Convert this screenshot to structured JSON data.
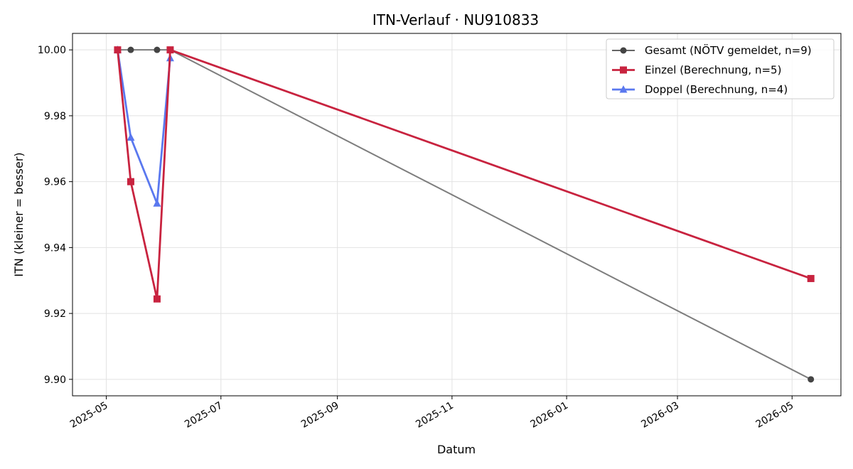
{
  "chart_data": {
    "type": "line",
    "title": "ITN-Verlauf · NU910833",
    "xlabel": "Datum",
    "ylabel": "ITN  (kleiner = besser)",
    "xlim": [
      "2025-04-13",
      "2026-05-27"
    ],
    "ylim": [
      9.895,
      10.005
    ],
    "x_ticks": [
      "2025-05",
      "2025-07",
      "2025-09",
      "2025-11",
      "2026-01",
      "2026-03",
      "2026-05"
    ],
    "y_ticks": [
      "9.90",
      "9.92",
      "9.94",
      "9.96",
      "9.98",
      "10.00"
    ],
    "grid": true,
    "legend_position": "top-right",
    "series": [
      {
        "name": "Gesamt (NÖTV gemeldet, n=9)",
        "color": "#666666",
        "marker": "circle",
        "points": [
          {
            "x": "2025-05-07",
            "y": 10.0
          },
          {
            "x": "2025-05-14",
            "y": 10.0
          },
          {
            "x": "2025-05-28",
            "y": 10.0
          },
          {
            "x": "2025-06-04",
            "y": 10.0
          },
          {
            "x": "2026-05-11",
            "y": 9.9
          }
        ]
      },
      {
        "name": "Einzel (Berechnung, n=5)",
        "color": "#c8233f",
        "marker": "square",
        "points": [
          {
            "x": "2025-05-07",
            "y": 10.0
          },
          {
            "x": "2025-05-14",
            "y": 9.96
          },
          {
            "x": "2025-05-28",
            "y": 9.9244
          },
          {
            "x": "2025-06-04",
            "y": 10.0
          },
          {
            "x": "2026-05-11",
            "y": 9.9306
          }
        ]
      },
      {
        "name": "Doppel (Berechnung, n=4)",
        "color": "#5a78ef",
        "marker": "triangle",
        "points": [
          {
            "x": "2025-05-07",
            "y": 10.0
          },
          {
            "x": "2025-05-14",
            "y": 9.9734
          },
          {
            "x": "2025-05-28",
            "y": 9.9534
          },
          {
            "x": "2025-06-04",
            "y": 9.9975
          }
        ]
      }
    ]
  }
}
